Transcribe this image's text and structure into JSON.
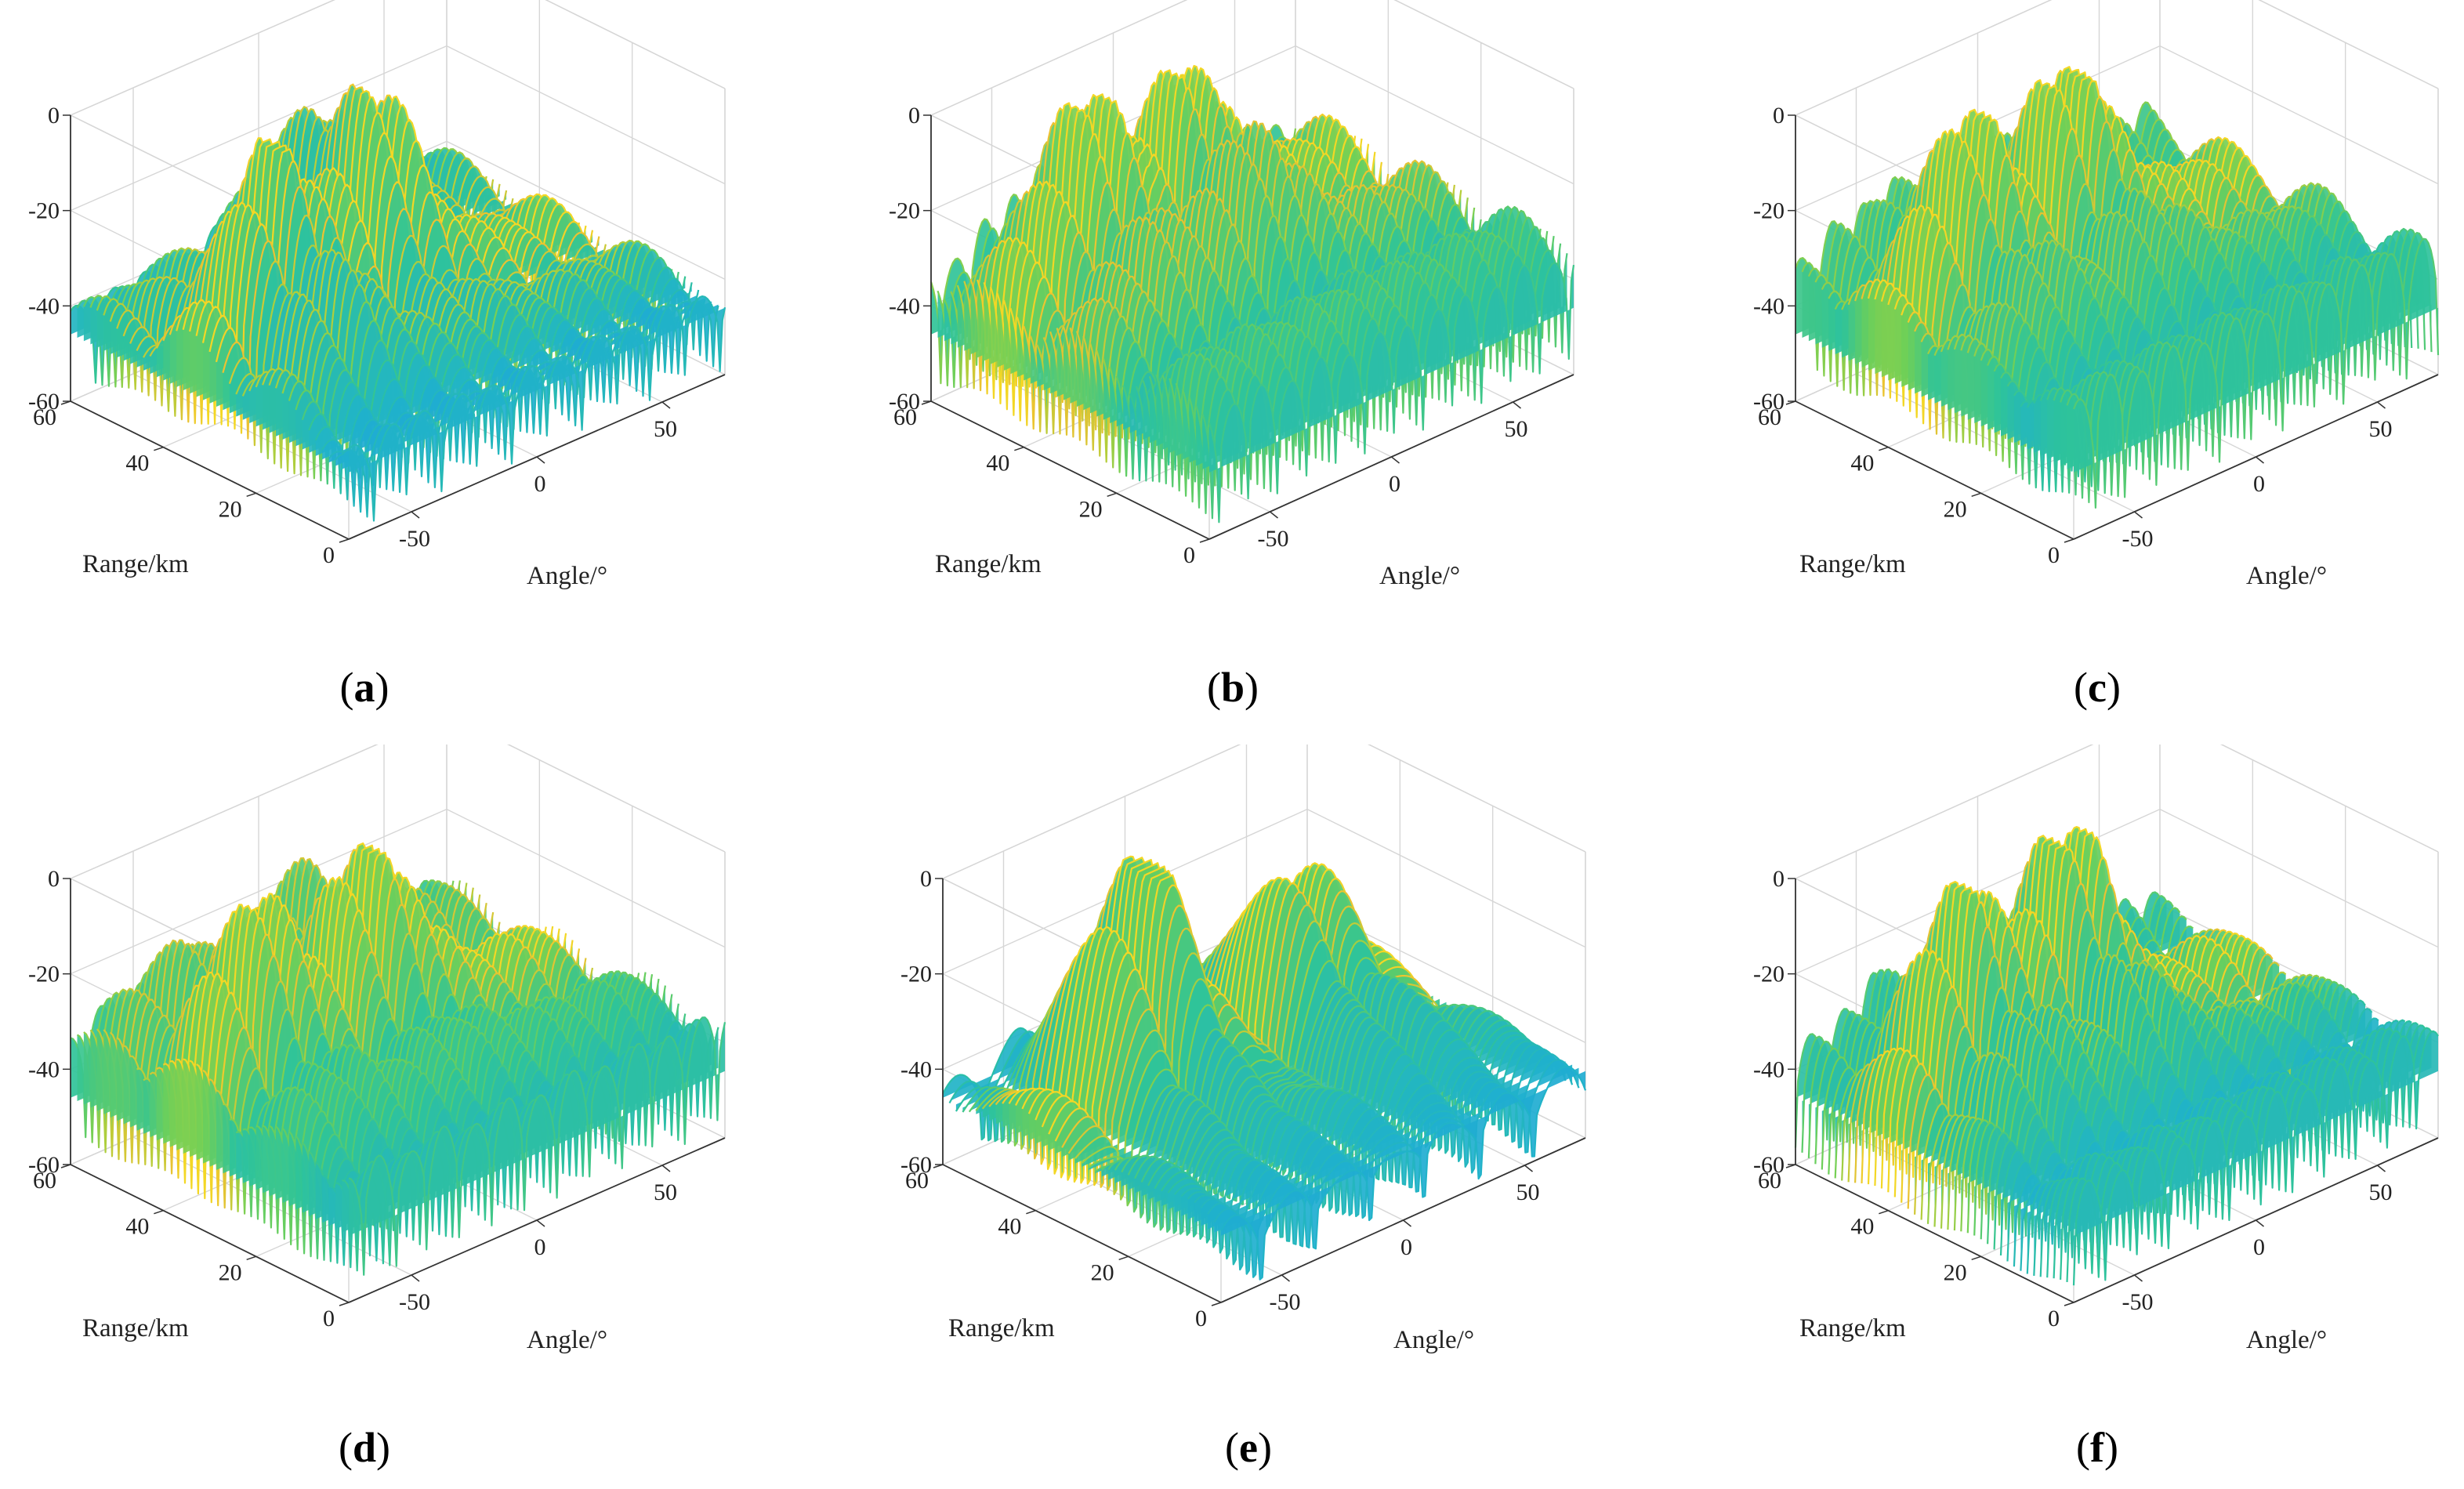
{
  "figure": {
    "background": "#ffffff",
    "grid_color": "#d6d6d6",
    "axis_color": "#333333",
    "colormap": [
      "#3b53d9",
      "#2b86e6",
      "#1fb0cf",
      "#2fc39a",
      "#6ccf5a",
      "#b4ce3a",
      "#eac232",
      "#f8e21e"
    ]
  },
  "chart_data": [
    {
      "id": "a",
      "type": "surface3d",
      "caption": {
        "open": "(",
        "letter": "a",
        "close": ")"
      },
      "xlabel": "Angle/°",
      "ylabel": "Range/km",
      "zlabel": "",
      "xlim": [
        -75,
        75
      ],
      "ylim": [
        0,
        60
      ],
      "zlim": [
        -60,
        0
      ],
      "xticks": [
        "-50",
        "0",
        "50"
      ],
      "yticks": [
        "0",
        "20",
        "40",
        "60"
      ],
      "zticks": [
        "-60",
        "-40",
        "-20",
        "0"
      ],
      "grid": true,
      "surface": {
        "peak_angle": 0,
        "peak_range": 40,
        "peak_db": -3,
        "secondary_peaks": [
          {
            "angle": -45,
            "range": 30,
            "db": -5
          }
        ],
        "floor_db": -48,
        "null_depth_db": -60,
        "angle_lobes": 26,
        "range_lobes": 3
      }
    },
    {
      "id": "b",
      "type": "surface3d",
      "caption": {
        "open": "(",
        "letter": "b",
        "close": ")"
      },
      "xlabel": "Angle/°",
      "ylabel": "Range/km",
      "zlabel": "",
      "xlim": [
        -75,
        75
      ],
      "ylim": [
        0,
        60
      ],
      "zlim": [
        -60,
        0
      ],
      "xticks": [
        "-50",
        "0",
        "50"
      ],
      "yticks": [
        "0",
        "20",
        "40",
        "60"
      ],
      "zticks": [
        "-60",
        "-40",
        "-20",
        "0"
      ],
      "grid": true,
      "surface": {
        "peak_angle": 0,
        "peak_range": 40,
        "peak_db": -3,
        "secondary_peaks": [
          {
            "angle": -35,
            "range": 45,
            "db": -6
          }
        ],
        "floor_db": -38,
        "null_depth_db": -60,
        "angle_lobes": 30,
        "range_lobes": 3
      }
    },
    {
      "id": "c",
      "type": "surface3d",
      "caption": {
        "open": "(",
        "letter": "c",
        "close": ")"
      },
      "xlabel": "Angle/°",
      "ylabel": "Range/km",
      "zlabel": "",
      "xlim": [
        -75,
        75
      ],
      "ylim": [
        0,
        60
      ],
      "zlim": [
        -60,
        0
      ],
      "xticks": [
        "-50",
        "0",
        "50"
      ],
      "yticks": [
        "0",
        "20",
        "40",
        "60"
      ],
      "zticks": [
        "-60",
        "-40",
        "-20",
        "0"
      ],
      "grid": true,
      "surface": {
        "peak_angle": 0,
        "peak_range": 40,
        "peak_db": -4,
        "secondary_peaks": [
          {
            "angle": -40,
            "range": 40,
            "db": -6
          }
        ],
        "floor_db": -40,
        "null_depth_db": -60,
        "angle_lobes": 28,
        "range_lobes": 3
      }
    },
    {
      "id": "d",
      "type": "surface3d",
      "caption": {
        "open": "(",
        "letter": "d",
        "close": ")"
      },
      "xlabel": "Angle/°",
      "ylabel": "Range/km",
      "zlabel": "",
      "xlim": [
        -75,
        75
      ],
      "ylim": [
        0,
        60
      ],
      "zlim": [
        -60,
        0
      ],
      "xticks": [
        "-50",
        "0",
        "50"
      ],
      "yticks": [
        "0",
        "20",
        "40",
        "60"
      ],
      "zticks": [
        "-60",
        "-40",
        "-20",
        "0"
      ],
      "grid": true,
      "surface": {
        "peak_angle": 0,
        "peak_range": 40,
        "peak_db": -4,
        "secondary_peaks": [
          {
            "angle": -45,
            "range": 38,
            "db": -6
          }
        ],
        "floor_db": -40,
        "null_depth_db": -60,
        "angle_lobes": 28,
        "range_lobes": 3
      }
    },
    {
      "id": "e",
      "type": "surface3d",
      "caption": {
        "open": "(",
        "letter": "e",
        "close": ")"
      },
      "xlabel": "Angle/°",
      "ylabel": "Range/km",
      "zlabel": "",
      "xlim": [
        -75,
        75
      ],
      "ylim": [
        0,
        60
      ],
      "zlim": [
        -60,
        0
      ],
      "xticks": [
        "-50",
        "0",
        "50"
      ],
      "yticks": [
        "0",
        "20",
        "40",
        "60"
      ],
      "zticks": [
        "-60",
        "-40",
        "-20",
        "0"
      ],
      "grid": true,
      "surface": {
        "peak_angle": -30,
        "peak_range": 40,
        "peak_db": -1,
        "secondary_peaks": [
          {
            "angle": 30,
            "range": 35,
            "db": -14
          }
        ],
        "floor_db": -50,
        "null_depth_db": -60,
        "angle_lobes": 16,
        "range_lobes": 2
      }
    },
    {
      "id": "f",
      "type": "surface3d",
      "caption": {
        "open": "(",
        "letter": "f",
        "close": ")"
      },
      "xlabel": "Angle/°",
      "ylabel": "Range/km",
      "zlabel": "",
      "xlim": [
        -75,
        75
      ],
      "ylim": [
        0,
        60
      ],
      "zlim": [
        -60,
        0
      ],
      "xticks": [
        "-50",
        "0",
        "50"
      ],
      "yticks": [
        "0",
        "20",
        "40",
        "60"
      ],
      "zticks": [
        "-60",
        "-40",
        "-20",
        "0"
      ],
      "grid": true,
      "surface": {
        "peak_angle": 0,
        "peak_range": 40,
        "peak_db": -3,
        "secondary_peaks": [
          {
            "angle": -40,
            "range": 40,
            "db": -6
          }
        ],
        "floor_db": -46,
        "null_depth_db": -60,
        "angle_lobes": 28,
        "range_lobes": 3
      }
    }
  ]
}
